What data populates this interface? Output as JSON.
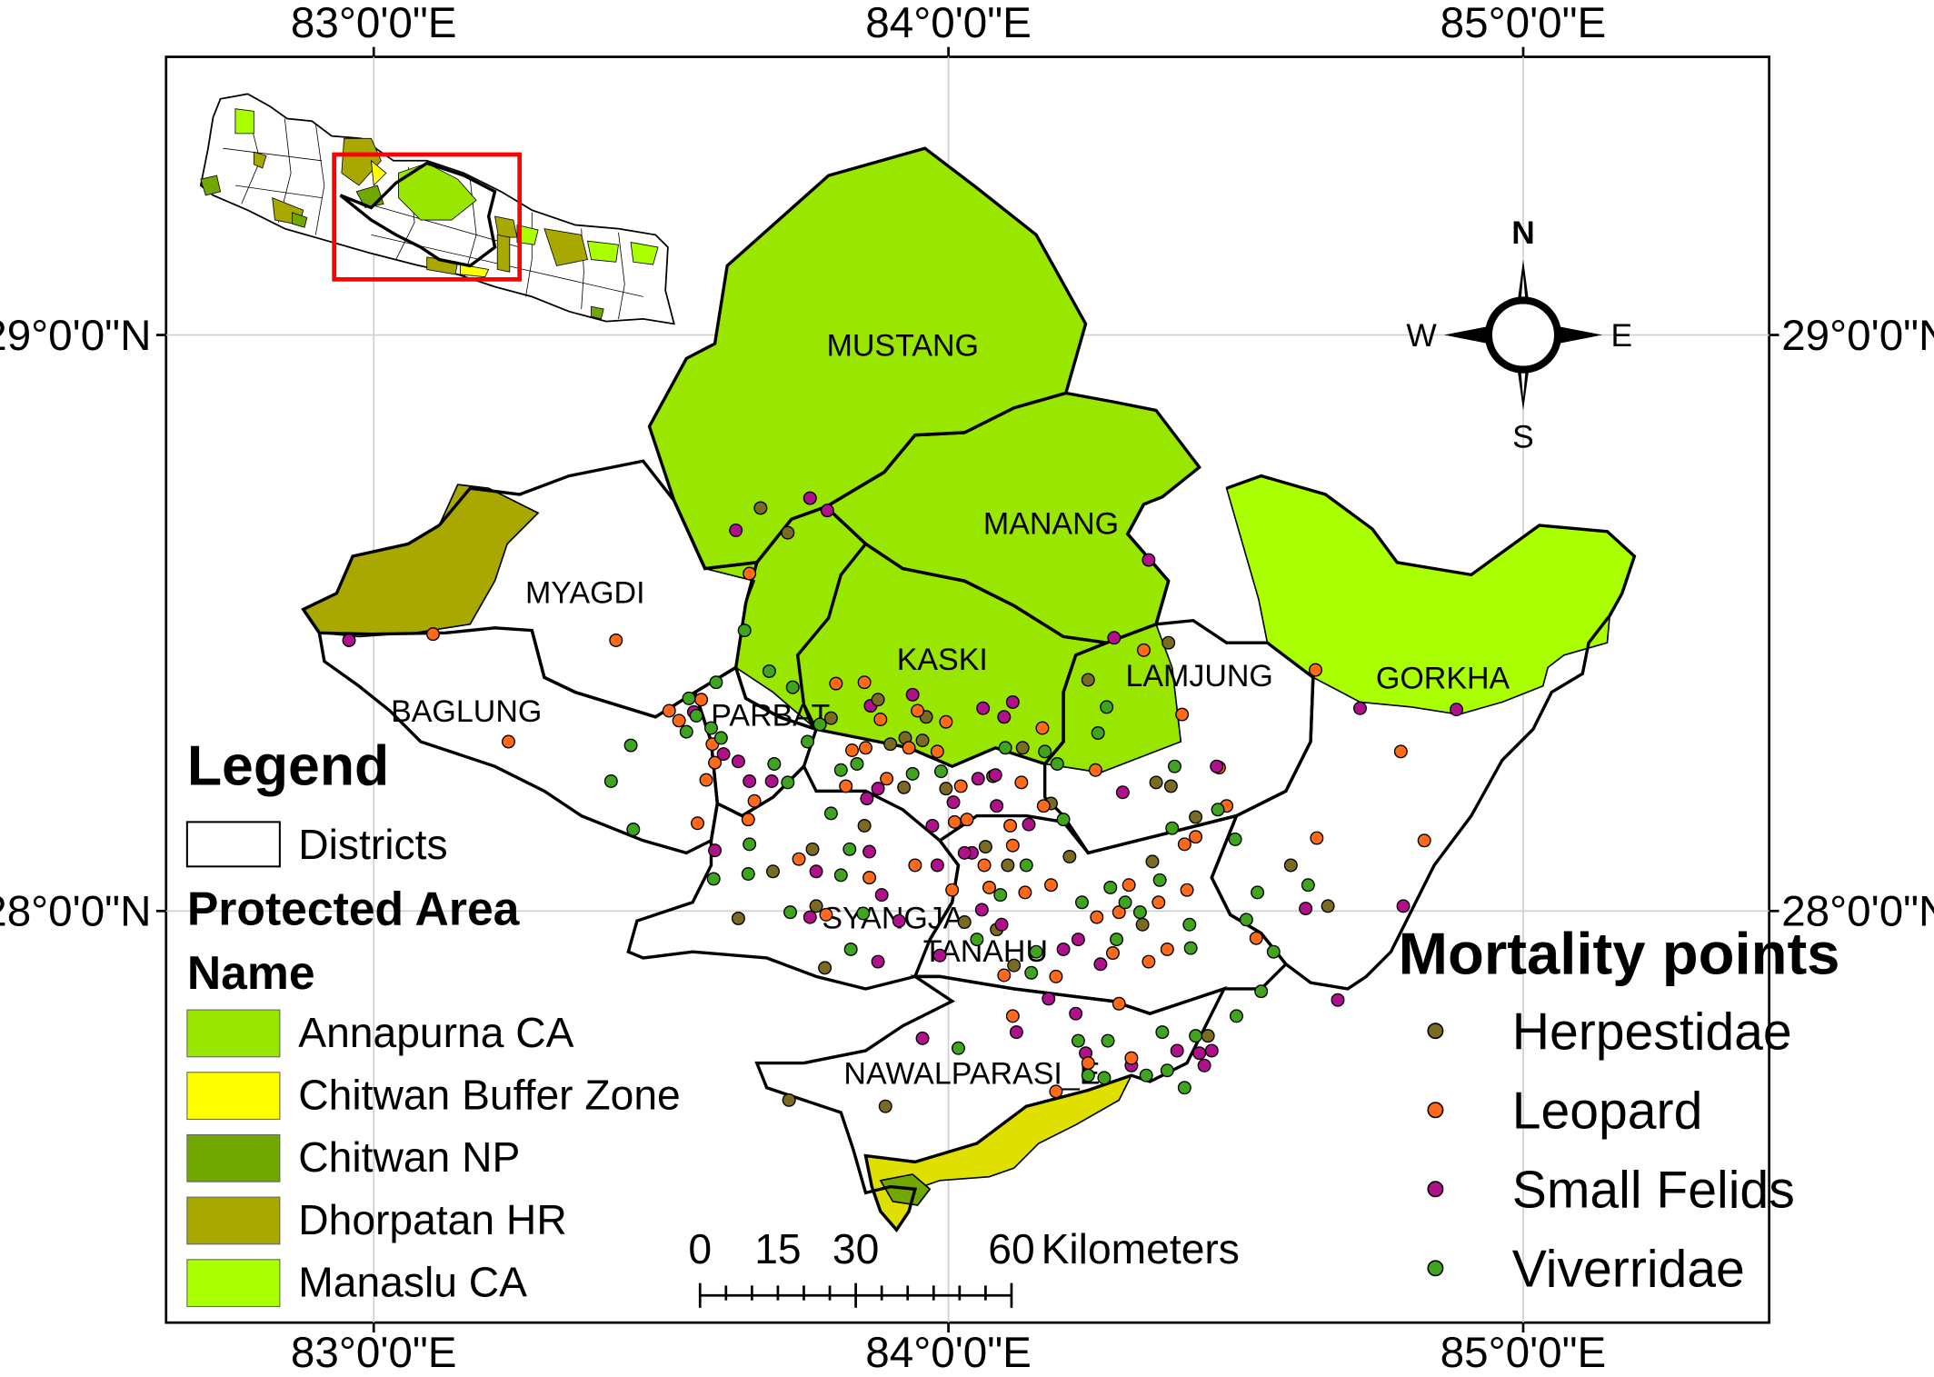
{
  "graticule": {
    "lon_labels": [
      "83°0'0\"E",
      "84°0'0\"E",
      "85°0'0\"E"
    ],
    "lat_labels": [
      "29°0'0\"N",
      "28°0'0\"N"
    ]
  },
  "districts": [
    "MUSTANG",
    "MANANG",
    "MYAGDI",
    "KASKI",
    "LAMJUNG",
    "GORKHA",
    "BAGLUNG",
    "PARBAT",
    "SYANGJA",
    "TANAHU",
    "NAWALPARASI_E"
  ],
  "legend": {
    "title": "Legend",
    "districts_label": "Districts",
    "protected_area_title": "Protected Area",
    "name_title": "Name",
    "items": [
      {
        "label": "Annapurna CA",
        "color": "#99e600"
      },
      {
        "label": "Chitwan Buffer Zone",
        "color": "#ffff00"
      },
      {
        "label": "Chitwan NP",
        "color": "#70a800"
      },
      {
        "label": "Dhorpatan HR",
        "color": "#a8a800"
      },
      {
        "label": "Manaslu CA",
        "color": "#aaff00"
      }
    ]
  },
  "mortality": {
    "title": "Mortality points",
    "items": [
      {
        "label": "Herpestidae",
        "color": "#7a6a22"
      },
      {
        "label": "Leopard",
        "color": "#ff6a1a"
      },
      {
        "label": "Small Felids",
        "color": "#b0108c"
      },
      {
        "label": "Viverridae",
        "color": "#3fa51e"
      }
    ]
  },
  "scale": {
    "ticks": [
      "0",
      "15",
      "30",
      "60"
    ],
    "unit": "Kilometers"
  },
  "compass": {
    "n": "N",
    "s": "S",
    "e": "E",
    "w": "W"
  }
}
